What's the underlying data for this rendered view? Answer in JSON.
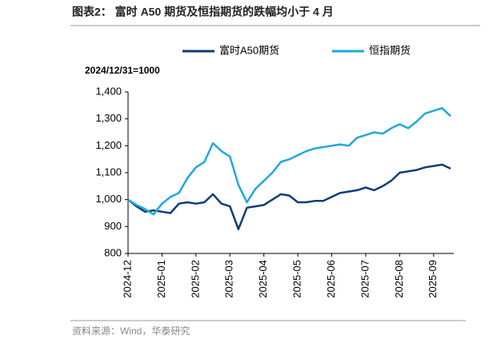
{
  "chart_data": {
    "type": "line",
    "title": "图表2： 富时 A50 期货及恒指期货的跌幅均小于 4 月",
    "subtitle": "2024/12/31=1000",
    "source": "资料来源：Wind，华泰研究",
    "categories": [
      "2024-12",
      null,
      null,
      null,
      "2025-01",
      null,
      null,
      null,
      "2025-02",
      null,
      null,
      null,
      "2025-03",
      null,
      null,
      null,
      "2025-04",
      null,
      null,
      null,
      "2025-05",
      null,
      null,
      null,
      "2025-06",
      null,
      null,
      null,
      "2025-07",
      null,
      null,
      null,
      "2025-08",
      null,
      null,
      null,
      "2025-09",
      null,
      null
    ],
    "series": [
      {
        "name": "富时A50期货",
        "color": "#0d3c7a",
        "values": [
          1000,
          975,
          955,
          960,
          955,
          950,
          985,
          990,
          985,
          990,
          1020,
          985,
          975,
          890,
          970,
          975,
          980,
          1000,
          1020,
          1015,
          990,
          990,
          995,
          995,
          1010,
          1025,
          1030,
          1035,
          1045,
          1035,
          1050,
          1070,
          1100,
          1105,
          1110,
          1120,
          1125,
          1130,
          1115
        ]
      },
      {
        "name": "恒指期货",
        "color": "#1fa8e0",
        "values": [
          1000,
          980,
          965,
          945,
          985,
          1010,
          1025,
          1080,
          1120,
          1140,
          1210,
          1180,
          1160,
          1055,
          990,
          1040,
          1070,
          1100,
          1140,
          1150,
          1165,
          1180,
          1190,
          1195,
          1200,
          1205,
          1200,
          1230,
          1240,
          1250,
          1245,
          1265,
          1280,
          1265,
          1290,
          1320,
          1330,
          1340,
          1310
        ]
      }
    ],
    "ylim": [
      800,
      1400
    ],
    "yticks": [
      800,
      900,
      {
        "value": 1000,
        "label": "1,000"
      },
      {
        "value": 1100,
        "label": "1,100"
      },
      {
        "value": 1200,
        "label": "1,200"
      },
      {
        "value": 1300,
        "label": "1,300"
      },
      {
        "value": 1400,
        "label": "1,400"
      }
    ],
    "legend": "top"
  }
}
